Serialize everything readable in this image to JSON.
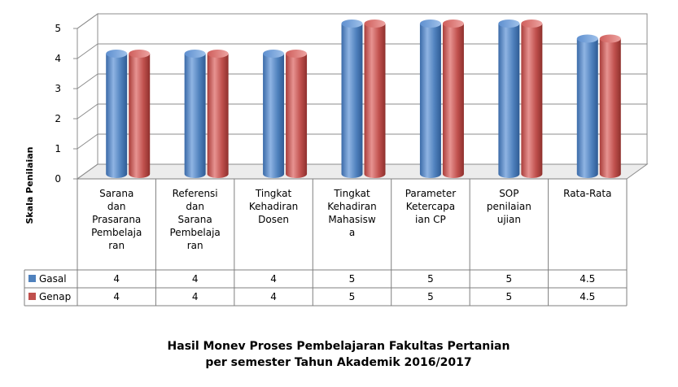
{
  "chart_data": {
    "type": "bar",
    "title": [
      "Hasil Monev Proses Pembelajaran Fakultas Pertanian",
      "per semester Tahun Akademik 2016/2017"
    ],
    "ylabel": "Skala Penilaian",
    "ylim": [
      0,
      5
    ],
    "yticks": [
      0,
      1,
      2,
      3,
      4,
      5
    ],
    "categories": [
      [
        "Sarana",
        "dan",
        "Prasarana",
        "Pembelaja",
        "ran"
      ],
      [
        "Referensi",
        "dan",
        "Sarana",
        "Pembelaja",
        "ran"
      ],
      [
        "Tingkat",
        "Kehadiran",
        "Dosen"
      ],
      [
        "Tingkat",
        "Kehadiran",
        "Mahasisw",
        "a"
      ],
      [
        "Parameter",
        "Ketercapa",
        "ian CP"
      ],
      [
        "SOP",
        "penilaian",
        "ujian"
      ],
      [
        "Rata-Rata"
      ]
    ],
    "series": [
      {
        "name": "Gasal",
        "values": [
          4,
          4,
          4,
          5,
          5,
          5,
          4.5
        ],
        "labels": [
          "4",
          "4",
          "4",
          "5",
          "5",
          "5",
          "4.5"
        ],
        "color": "#4f81bd"
      },
      {
        "name": "Genap",
        "values": [
          4,
          4,
          4,
          5,
          5,
          5,
          4.5
        ],
        "labels": [
          "4",
          "4",
          "4",
          "5",
          "5",
          "5",
          "4.5"
        ],
        "color": "#c0504d"
      }
    ],
    "data_table": true,
    "grid": true
  }
}
